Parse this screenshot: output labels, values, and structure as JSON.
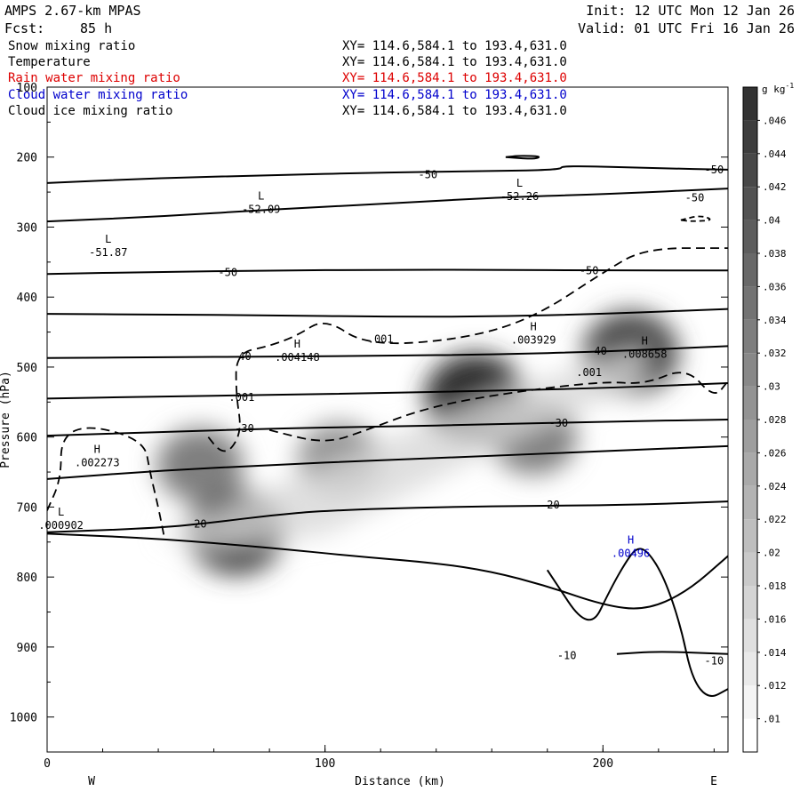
{
  "header": {
    "model": "AMPS 2.67-km MPAS",
    "forecast_label": "Fcst:",
    "forecast_value": "85 h",
    "init": "Init: 12 UTC Mon 12 Jan 26",
    "valid": "Valid: 01 UTC Fri 16 Jan 26"
  },
  "fields": [
    {
      "name": "Snow mixing ratio",
      "xy": "XY= 114.6,584.1 to 193.4,631.0",
      "color": "#000000"
    },
    {
      "name": "Temperature",
      "xy": "XY= 114.6,584.1 to 193.4,631.0",
      "color": "#000000"
    },
    {
      "name": "Rain water mixing ratio",
      "xy": "XY= 114.6,584.1 to 193.4,631.0",
      "color": "#dd0000"
    },
    {
      "name": "Cloud water mixing ratio",
      "xy": "XY= 114.6,584.1 to 193.4,631.0",
      "color": "#0000cc"
    },
    {
      "name": "Cloud ice mixing ratio",
      "xy": "XY= 114.6,584.1 to 193.4,631.0",
      "color": "#000000"
    }
  ],
  "chart_data": {
    "type": "heatmap",
    "title": "",
    "xlabel": "Distance (km)",
    "ylabel": "Pressure (hPa)",
    "xlim": [
      0,
      245
    ],
    "ylim": [
      1050,
      100
    ],
    "x_ticks": [
      0,
      100,
      200
    ],
    "y_ticks": [
      100,
      200,
      300,
      400,
      500,
      600,
      700,
      800,
      900,
      1000
    ],
    "x_end_labels": {
      "left": "W",
      "right": "E"
    },
    "colorbar": {
      "unit": "g kg",
      "unit_sup": "-1",
      "min": 0.009,
      "max": 0.048,
      "ticks": [
        ".01",
        ".012",
        ".014",
        ".016",
        ".018",
        ".02",
        ".022",
        ".024",
        ".026",
        ".028",
        ".03",
        ".032",
        ".034",
        ".036",
        ".038",
        ".04",
        ".042",
        ".044",
        ".046"
      ]
    },
    "snow_maxima": [
      {
        "x": 154,
        "p": 545,
        "value": 0.046
      },
      {
        "x": 68,
        "p": 735,
        "value": 0.042
      },
      {
        "x": 210,
        "p": 480,
        "value": 0.04
      },
      {
        "x": 55,
        "p": 640,
        "value": 0.03
      },
      {
        "x": 105,
        "p": 630,
        "value": 0.026
      },
      {
        "x": 175,
        "p": 600,
        "value": 0.03
      }
    ],
    "temperature_contours": [
      {
        "level": -50,
        "points": [
          [
            0,
            237
          ],
          [
            40,
            230
          ],
          [
            80,
            226
          ],
          [
            120,
            222
          ],
          [
            160,
            220
          ],
          [
            185,
            218
          ],
          [
            185,
            212
          ],
          [
            220,
            216
          ],
          [
            245,
            218
          ]
        ]
      },
      {
        "level": -50,
        "points": [
          [
            0,
            292
          ],
          [
            40,
            285
          ],
          [
            80,
            275
          ],
          [
            120,
            267
          ],
          [
            160,
            258
          ],
          [
            200,
            253
          ],
          [
            245,
            245
          ]
        ]
      },
      {
        "level": -50,
        "points": [
          [
            0,
            367
          ],
          [
            40,
            364
          ],
          [
            80,
            362
          ],
          [
            120,
            361
          ],
          [
            160,
            361
          ],
          [
            200,
            362
          ],
          [
            245,
            362
          ]
        ]
      },
      {
        "level": -40,
        "points": [
          [
            0,
            424
          ],
          [
            40,
            425
          ],
          [
            80,
            426
          ],
          [
            120,
            428
          ],
          [
            160,
            428
          ],
          [
            200,
            424
          ],
          [
            245,
            417
          ]
        ]
      },
      {
        "level": -40,
        "points": [
          [
            0,
            487
          ],
          [
            40,
            486
          ],
          [
            80,
            485
          ],
          [
            120,
            484
          ],
          [
            160,
            482
          ],
          [
            200,
            478
          ],
          [
            245,
            470
          ]
        ]
      },
      {
        "level": -30,
        "points": [
          [
            0,
            545
          ],
          [
            40,
            542
          ],
          [
            80,
            540
          ],
          [
            120,
            537
          ],
          [
            160,
            534
          ],
          [
            200,
            530
          ],
          [
            245,
            523
          ]
        ]
      },
      {
        "level": -30,
        "points": [
          [
            0,
            598
          ],
          [
            40,
            593
          ],
          [
            80,
            588
          ],
          [
            120,
            585
          ],
          [
            160,
            582
          ],
          [
            200,
            578
          ],
          [
            245,
            575
          ]
        ]
      },
      {
        "level": -20,
        "points": [
          [
            0,
            660
          ],
          [
            40,
            648
          ],
          [
            80,
            640
          ],
          [
            120,
            633
          ],
          [
            160,
            627
          ],
          [
            200,
            620
          ],
          [
            245,
            613
          ]
        ]
      },
      {
        "level": -20,
        "points": [
          [
            0,
            736
          ],
          [
            40,
            730
          ],
          [
            60,
            722
          ],
          [
            80,
            712
          ],
          [
            100,
            705
          ],
          [
            140,
            700
          ],
          [
            180,
            698
          ],
          [
            210,
            697
          ],
          [
            245,
            692
          ]
        ]
      },
      {
        "level": -10,
        "points": [
          [
            0,
            738
          ],
          [
            40,
            745
          ],
          [
            80,
            758
          ],
          [
            110,
            770
          ],
          [
            140,
            780
          ],
          [
            160,
            792
          ],
          [
            180,
            813
          ],
          [
            200,
            840
          ],
          [
            215,
            848
          ],
          [
            230,
            822
          ],
          [
            245,
            770
          ]
        ]
      },
      {
        "level": -10,
        "points": [
          [
            205,
            910
          ],
          [
            220,
            906
          ],
          [
            245,
            910
          ]
        ]
      }
    ],
    "cloud_ice_contours": [
      {
        "level": 0.001,
        "points": [
          [
            0,
            705
          ],
          [
            5,
            660
          ],
          [
            5,
            600
          ],
          [
            15,
            582
          ],
          [
            35,
            605
          ],
          [
            37,
            650
          ],
          [
            40,
            700
          ],
          [
            42,
            740
          ]
        ]
      },
      {
        "level": 0.001,
        "points": [
          [
            58,
            600
          ],
          [
            62,
            620
          ],
          [
            66,
            620
          ],
          [
            70,
            590
          ],
          [
            68,
            540
          ],
          [
            68,
            480
          ],
          [
            80,
            470
          ],
          [
            90,
            455
          ],
          [
            100,
            430
          ],
          [
            115,
            470
          ],
          [
            150,
            460
          ],
          [
            175,
            430
          ],
          [
            200,
            365
          ],
          [
            215,
            330
          ],
          [
            245,
            330
          ]
        ]
      },
      {
        "level": 0.001,
        "points": [
          [
            80,
            590
          ],
          [
            100,
            610
          ],
          [
            115,
            590
          ],
          [
            135,
            560
          ],
          [
            160,
            540
          ],
          [
            200,
            520
          ],
          [
            215,
            525
          ],
          [
            230,
            500
          ],
          [
            240,
            545
          ],
          [
            245,
            520
          ]
        ]
      }
    ],
    "annotations": [
      {
        "text": "L",
        "value": "-51.87",
        "x": 22,
        "p": 330,
        "color": "#000000"
      },
      {
        "text": "L",
        "value": "-52.09",
        "x": 77,
        "p": 268,
        "color": "#000000"
      },
      {
        "text": "L",
        "value": "-52.26",
        "x": 170,
        "p": 250,
        "color": "#000000"
      },
      {
        "text": "H",
        "value": ".004148",
        "x": 90,
        "p": 480,
        "color": "#000000"
      },
      {
        "text": "H",
        "value": ".003929",
        "x": 175,
        "p": 455,
        "color": "#000000"
      },
      {
        "text": "H",
        "value": ".008658",
        "x": 215,
        "p": 475,
        "color": "#000000"
      },
      {
        "text": "H",
        "value": ".002273",
        "x": 18,
        "p": 630,
        "color": "#000000"
      },
      {
        "text": "L",
        "value": ".000902",
        "x": 5,
        "p": 720,
        "color": "#000000"
      },
      {
        "text": "H",
        "value": ".00496",
        "x": 210,
        "p": 760,
        "color": "#0000cc"
      }
    ],
    "contour_labels": [
      {
        "text": "-50",
        "x": 137,
        "p": 225
      },
      {
        "text": "-50",
        "x": 240,
        "p": 218
      },
      {
        "text": "-50",
        "x": 233,
        "p": 258
      },
      {
        "text": "-50",
        "x": 65,
        "p": 365
      },
      {
        "text": "-50",
        "x": 195,
        "p": 362
      },
      {
        "text": "-40",
        "x": 70,
        "p": 485
      },
      {
        "text": "-40",
        "x": 198,
        "p": 477
      },
      {
        "text": ".001",
        "x": 120,
        "p": 460
      },
      {
        "text": ".001",
        "x": 195,
        "p": 508
      },
      {
        "text": ".001",
        "x": 70,
        "p": 543
      },
      {
        "text": "-30",
        "x": 71,
        "p": 588
      },
      {
        "text": "-30",
        "x": 184,
        "p": 580
      },
      {
        "text": "-20",
        "x": 54,
        "p": 724
      },
      {
        "text": "-20",
        "x": 181,
        "p": 697
      },
      {
        "text": "-10",
        "x": 187,
        "p": 912
      },
      {
        "text": "-10",
        "x": 240,
        "p": 920
      }
    ]
  }
}
